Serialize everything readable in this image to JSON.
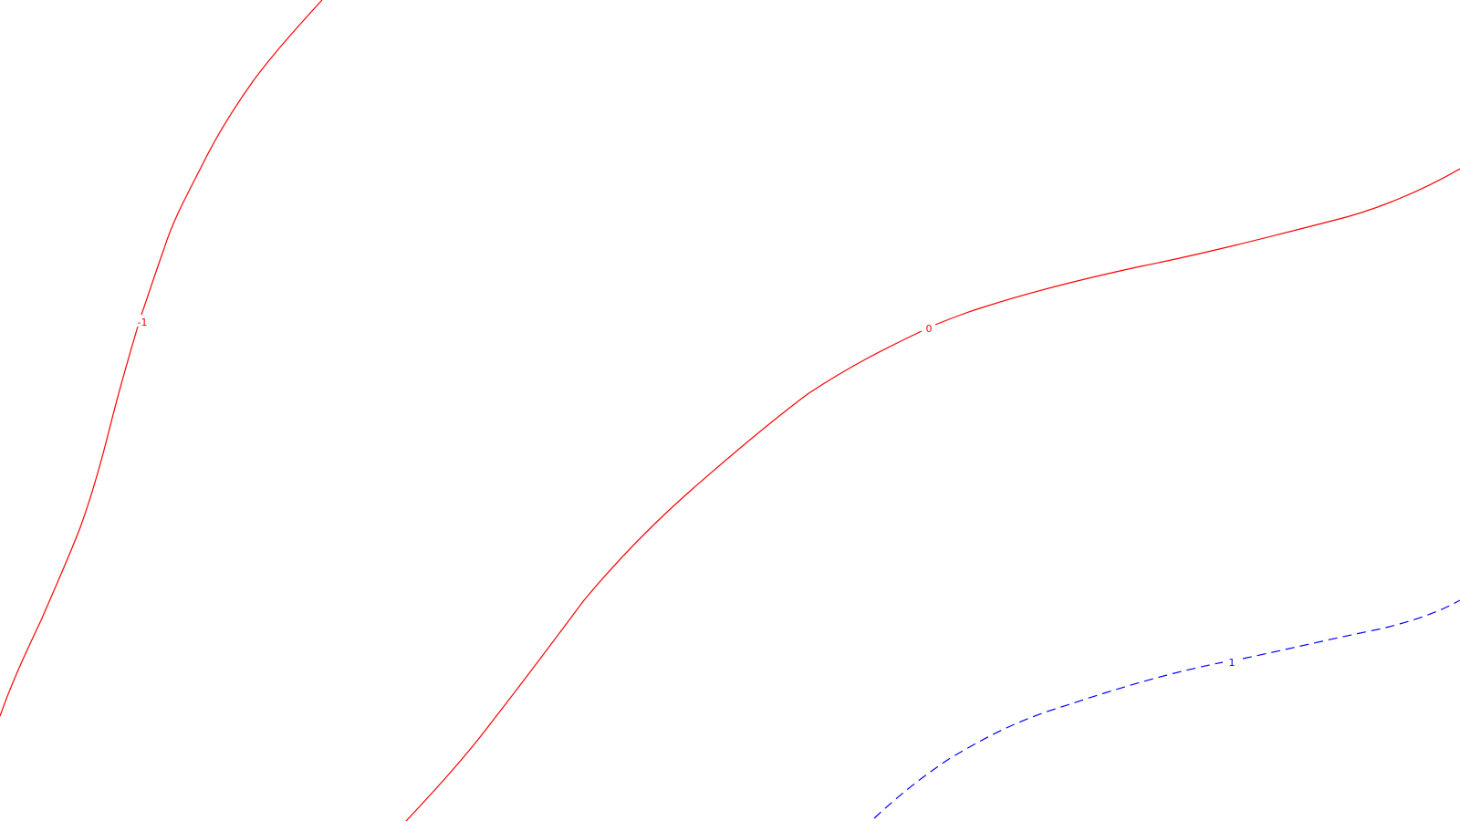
{
  "map": {
    "background": "#ffffff",
    "contours": [
      {
        "level": "-1",
        "value": -1,
        "color": "#ff0000",
        "style": "solid"
      },
      {
        "level": "0",
        "value": 0,
        "color": "#ff0000",
        "style": "solid"
      },
      {
        "level": "1",
        "value": 1,
        "color": "#0000ff",
        "style": "dashed"
      }
    ]
  }
}
